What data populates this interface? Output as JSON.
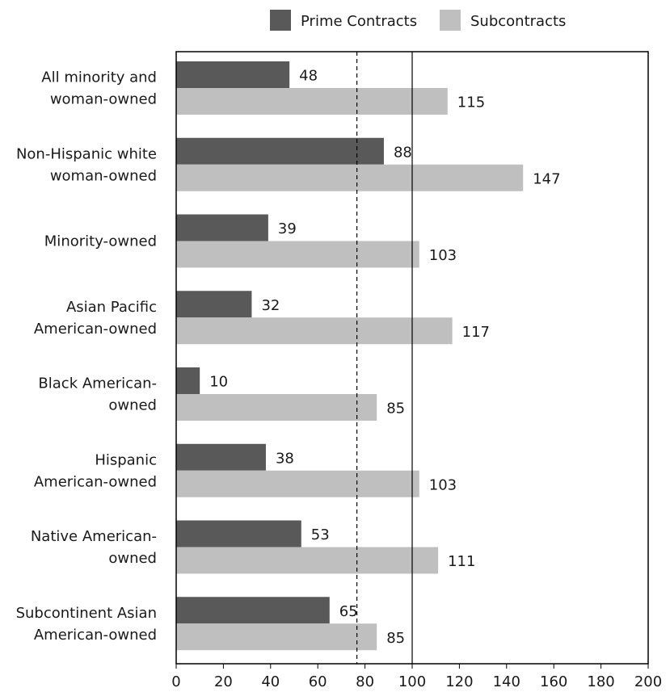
{
  "chart_data": {
    "type": "bar",
    "orientation": "horizontal",
    "categories": [
      [
        "All minority and",
        "woman-owned"
      ],
      [
        "Non-Hispanic white",
        "woman-owned"
      ],
      [
        "Minority-owned"
      ],
      [
        "Asian Pacific",
        "American-owned"
      ],
      [
        "Black American-",
        "owned"
      ],
      [
        "Hispanic",
        "American-owned"
      ],
      [
        "Native American-",
        "owned"
      ],
      [
        "Subcontinent Asian",
        "American-owned"
      ]
    ],
    "series": [
      {
        "name": "Prime Contracts",
        "color": "#595959",
        "values": [
          48,
          88,
          39,
          32,
          10,
          38,
          53,
          65
        ]
      },
      {
        "name": "Subcontracts",
        "color": "#bfbfbf",
        "values": [
          115,
          147,
          103,
          117,
          85,
          103,
          111,
          85
        ]
      }
    ],
    "xlim": [
      0,
      200
    ],
    "xticks": [
      0,
      20,
      40,
      60,
      80,
      100,
      120,
      140,
      160,
      180,
      200
    ],
    "reference_lines": [
      {
        "value": 80,
        "style": "dashed"
      },
      {
        "value": 100,
        "style": "solid"
      }
    ],
    "legend": "top",
    "grid": false,
    "title": "",
    "xlabel": "",
    "ylabel": ""
  }
}
